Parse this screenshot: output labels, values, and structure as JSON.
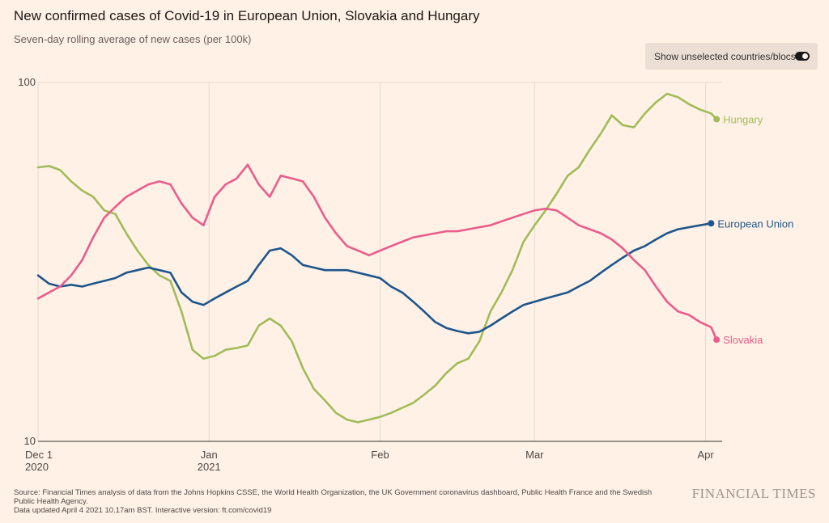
{
  "header": {
    "title": "New confirmed cases of Covid-19 in European Union, Slovakia and Hungary",
    "subtitle": "Seven-day rolling average of new cases (per 100k)"
  },
  "toggle": {
    "label": "Show unselected countries/blocs",
    "state": "on"
  },
  "footer": {
    "source": "Source: Financial Times analysis of data from the Johns Hopkins CSSE, the World Health Organization, the UK Government coronavirus dashboard, Public Health France and the Swedish Public Health Agency.",
    "updated": "Data updated April 4 2021 10.17am BST. Interactive version: ft.com/covid19",
    "brand": "FINANCIAL TIMES"
  },
  "chart_data": {
    "type": "line",
    "title": "New confirmed cases of Covid-19 in European Union, Slovakia and Hungary",
    "ylabel": "Seven-day rolling average of new cases (per 100k)",
    "yscale": "log",
    "ylim": [
      10,
      100
    ],
    "yticks": [
      {
        "value": 10,
        "label": "10"
      },
      {
        "value": 100,
        "label": "100"
      }
    ],
    "xlim": [
      0,
      124
    ],
    "xticks": [
      {
        "value": 0,
        "lines": [
          "Dec 1",
          "2020"
        ]
      },
      {
        "value": 31,
        "lines": [
          "Jan",
          "2021"
        ]
      },
      {
        "value": 62,
        "lines": [
          "Feb"
        ]
      },
      {
        "value": 90,
        "lines": [
          "Mar"
        ]
      },
      {
        "value": 121,
        "lines": [
          "Apr"
        ]
      }
    ],
    "x_unit": "days since Dec 1 2020",
    "series": [
      {
        "name": "Hungary",
        "color": "#a0bc5a",
        "label": "Hungary",
        "points": [
          [
            0,
            58
          ],
          [
            2,
            58.5
          ],
          [
            4,
            57
          ],
          [
            6,
            53
          ],
          [
            8,
            50
          ],
          [
            10,
            48
          ],
          [
            12,
            44
          ],
          [
            14,
            43
          ],
          [
            16,
            38
          ],
          [
            18,
            34
          ],
          [
            20,
            31
          ],
          [
            22,
            29
          ],
          [
            24,
            28
          ],
          [
            26,
            23
          ],
          [
            28,
            18
          ],
          [
            30,
            17
          ],
          [
            32,
            17.3
          ],
          [
            34,
            18
          ],
          [
            36,
            18.2
          ],
          [
            38,
            18.5
          ],
          [
            40,
            21
          ],
          [
            42,
            22
          ],
          [
            44,
            21
          ],
          [
            46,
            19
          ],
          [
            48,
            16
          ],
          [
            50,
            14
          ],
          [
            52,
            13
          ],
          [
            54,
            12
          ],
          [
            56,
            11.5
          ],
          [
            58,
            11.3
          ],
          [
            60,
            11.5
          ],
          [
            62,
            11.7
          ],
          [
            64,
            12
          ],
          [
            66,
            12.4
          ],
          [
            68,
            12.8
          ],
          [
            70,
            13.5
          ],
          [
            72,
            14.3
          ],
          [
            74,
            15.5
          ],
          [
            76,
            16.5
          ],
          [
            78,
            17
          ],
          [
            80,
            19
          ],
          [
            82,
            23
          ],
          [
            84,
            26
          ],
          [
            86,
            30
          ],
          [
            88,
            36
          ],
          [
            90,
            40
          ],
          [
            92,
            44
          ],
          [
            94,
            49
          ],
          [
            96,
            55
          ],
          [
            98,
            58
          ],
          [
            100,
            65
          ],
          [
            102,
            72
          ],
          [
            104,
            81
          ],
          [
            106,
            76
          ],
          [
            108,
            75
          ],
          [
            110,
            82
          ],
          [
            112,
            88
          ],
          [
            114,
            93
          ],
          [
            116,
            91
          ],
          [
            118,
            87
          ],
          [
            120,
            84
          ],
          [
            122,
            82
          ],
          [
            123,
            79
          ]
        ]
      },
      {
        "name": "European Union",
        "color": "#1e558c",
        "label": "European Union",
        "points": [
          [
            0,
            29
          ],
          [
            2,
            27.5
          ],
          [
            4,
            27
          ],
          [
            6,
            27.3
          ],
          [
            8,
            27
          ],
          [
            10,
            27.5
          ],
          [
            12,
            28
          ],
          [
            14,
            28.5
          ],
          [
            16,
            29.5
          ],
          [
            18,
            30
          ],
          [
            20,
            30.5
          ],
          [
            22,
            30
          ],
          [
            24,
            29.5
          ],
          [
            26,
            26
          ],
          [
            28,
            24.5
          ],
          [
            30,
            24
          ],
          [
            32,
            25
          ],
          [
            34,
            26
          ],
          [
            36,
            27
          ],
          [
            38,
            28
          ],
          [
            40,
            31
          ],
          [
            42,
            34
          ],
          [
            44,
            34.5
          ],
          [
            46,
            33
          ],
          [
            48,
            31
          ],
          [
            50,
            30.5
          ],
          [
            52,
            30
          ],
          [
            54,
            30
          ],
          [
            56,
            30
          ],
          [
            58,
            29.5
          ],
          [
            60,
            29
          ],
          [
            62,
            28.5
          ],
          [
            64,
            27
          ],
          [
            66,
            26
          ],
          [
            68,
            24.5
          ],
          [
            70,
            23
          ],
          [
            72,
            21.5
          ],
          [
            74,
            20.7
          ],
          [
            76,
            20.3
          ],
          [
            78,
            20
          ],
          [
            80,
            20.2
          ],
          [
            82,
            21
          ],
          [
            84,
            22
          ],
          [
            86,
            23
          ],
          [
            88,
            24
          ],
          [
            90,
            24.5
          ],
          [
            92,
            25
          ],
          [
            94,
            25.5
          ],
          [
            96,
            26
          ],
          [
            98,
            27
          ],
          [
            100,
            28
          ],
          [
            102,
            29.5
          ],
          [
            104,
            31
          ],
          [
            106,
            32.5
          ],
          [
            108,
            34
          ],
          [
            110,
            35
          ],
          [
            112,
            36.5
          ],
          [
            114,
            38
          ],
          [
            116,
            39
          ],
          [
            118,
            39.5
          ],
          [
            120,
            40
          ],
          [
            122,
            40.5
          ]
        ]
      },
      {
        "name": "Slovakia",
        "color": "#e95d8c",
        "label": "Slovakia",
        "points": [
          [
            0,
            25
          ],
          [
            2,
            26
          ],
          [
            4,
            27
          ],
          [
            6,
            29
          ],
          [
            8,
            32
          ],
          [
            10,
            37
          ],
          [
            12,
            42
          ],
          [
            14,
            45
          ],
          [
            16,
            48
          ],
          [
            18,
            50
          ],
          [
            20,
            52
          ],
          [
            22,
            53
          ],
          [
            24,
            52
          ],
          [
            26,
            46
          ],
          [
            28,
            42
          ],
          [
            30,
            40
          ],
          [
            32,
            48
          ],
          [
            34,
            52
          ],
          [
            36,
            54
          ],
          [
            38,
            59
          ],
          [
            40,
            52
          ],
          [
            42,
            48
          ],
          [
            44,
            55
          ],
          [
            46,
            54
          ],
          [
            48,
            53
          ],
          [
            50,
            48
          ],
          [
            52,
            42
          ],
          [
            54,
            38
          ],
          [
            56,
            35
          ],
          [
            58,
            34
          ],
          [
            60,
            33
          ],
          [
            62,
            34
          ],
          [
            64,
            35
          ],
          [
            66,
            36
          ],
          [
            68,
            37
          ],
          [
            70,
            37.5
          ],
          [
            72,
            38
          ],
          [
            74,
            38.5
          ],
          [
            76,
            38.5
          ],
          [
            78,
            39
          ],
          [
            80,
            39.5
          ],
          [
            82,
            40
          ],
          [
            84,
            41
          ],
          [
            86,
            42
          ],
          [
            88,
            43
          ],
          [
            90,
            44
          ],
          [
            92,
            44.5
          ],
          [
            94,
            44
          ],
          [
            96,
            42
          ],
          [
            98,
            40
          ],
          [
            100,
            39
          ],
          [
            102,
            38
          ],
          [
            104,
            36.5
          ],
          [
            106,
            34.5
          ],
          [
            108,
            32
          ],
          [
            110,
            30
          ],
          [
            112,
            27
          ],
          [
            114,
            24.5
          ],
          [
            116,
            23
          ],
          [
            118,
            22.5
          ],
          [
            120,
            21.5
          ],
          [
            122,
            20.8
          ],
          [
            123,
            19.2
          ]
        ]
      }
    ],
    "grid": {
      "vertical": true,
      "horizontal_at_ticks": true
    }
  }
}
